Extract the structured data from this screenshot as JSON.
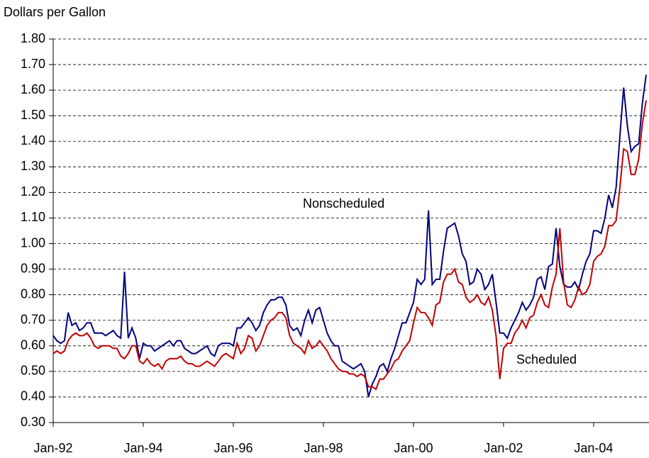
{
  "chart_data": {
    "type": "line",
    "y_label": "Dollars per Gallon",
    "categories": [
      "Jan-92",
      null,
      null,
      null,
      null,
      null,
      null,
      null,
      null,
      null,
      null,
      null,
      null,
      null,
      null,
      null,
      null,
      null,
      null,
      null,
      null,
      null,
      null,
      null,
      "Jan-94",
      null,
      null,
      null,
      null,
      null,
      null,
      null,
      null,
      null,
      null,
      null,
      null,
      null,
      null,
      null,
      null,
      null,
      null,
      null,
      null,
      null,
      null,
      null,
      "Jan-96",
      null,
      null,
      null,
      null,
      null,
      null,
      null,
      null,
      null,
      null,
      null,
      null,
      null,
      null,
      null,
      null,
      null,
      null,
      null,
      null,
      null,
      null,
      null,
      "Jan-98",
      null,
      null,
      null,
      null,
      null,
      null,
      null,
      null,
      null,
      null,
      null,
      null,
      null,
      null,
      null,
      null,
      null,
      null,
      null,
      null,
      null,
      null,
      null,
      "Jan-00",
      null,
      null,
      null,
      null,
      null,
      null,
      null,
      null,
      null,
      null,
      null,
      null,
      null,
      null,
      null,
      null,
      null,
      null,
      null,
      null,
      null,
      null,
      null,
      "Jan-02",
      null,
      null,
      null,
      null,
      null,
      null,
      null,
      null,
      null,
      null,
      null,
      null,
      null,
      null,
      null,
      null,
      null,
      null,
      null,
      null,
      null,
      null,
      null,
      "Jan-04",
      null,
      null,
      null,
      null,
      null,
      null,
      null,
      null,
      null,
      null,
      null,
      null,
      null,
      null
    ],
    "series": [
      {
        "name": "Nonscheduled",
        "color": "#000080",
        "values": [
          0.64,
          0.62,
          0.61,
          0.62,
          0.73,
          0.68,
          0.69,
          0.66,
          0.67,
          0.69,
          0.69,
          0.65,
          0.65,
          0.65,
          0.64,
          0.65,
          0.66,
          0.64,
          0.63,
          0.89,
          0.63,
          0.67,
          0.63,
          0.55,
          0.61,
          0.6,
          0.6,
          0.58,
          0.59,
          0.6,
          0.61,
          0.62,
          0.6,
          0.62,
          0.62,
          0.59,
          0.58,
          0.57,
          0.57,
          0.58,
          0.59,
          0.6,
          0.57,
          0.56,
          0.6,
          0.61,
          0.61,
          0.61,
          0.6,
          0.67,
          0.67,
          0.69,
          0.71,
          0.69,
          0.66,
          0.68,
          0.73,
          0.76,
          0.78,
          0.78,
          0.79,
          0.79,
          0.76,
          0.68,
          0.66,
          0.67,
          0.64,
          0.7,
          0.74,
          0.69,
          0.74,
          0.75,
          0.7,
          0.65,
          0.62,
          0.6,
          0.6,
          0.54,
          0.53,
          0.52,
          0.51,
          0.52,
          0.53,
          0.5,
          0.4,
          0.45,
          0.48,
          0.52,
          0.53,
          0.5,
          0.55,
          0.59,
          0.64,
          0.69,
          0.69,
          0.73,
          0.77,
          0.86,
          0.84,
          0.86,
          1.13,
          0.84,
          0.86,
          0.86,
          0.97,
          1.06,
          1.07,
          1.08,
          1.03,
          0.96,
          0.93,
          0.84,
          0.85,
          0.9,
          0.88,
          0.82,
          0.84,
          0.88,
          0.77,
          0.65,
          0.65,
          0.63,
          0.67,
          0.7,
          0.73,
          0.77,
          0.74,
          0.76,
          0.79,
          0.86,
          0.87,
          0.82,
          0.91,
          0.92,
          1.06,
          0.91,
          0.84,
          0.83,
          0.83,
          0.85,
          0.82,
          0.88,
          0.93,
          0.96,
          1.05,
          1.05,
          1.04,
          1.1,
          1.19,
          1.14,
          1.22,
          1.42,
          1.61,
          1.46,
          1.36,
          1.38,
          1.39,
          1.55,
          1.66
        ]
      },
      {
        "name": "Scheduled",
        "color": "#c00000",
        "values": [
          0.57,
          0.58,
          0.57,
          0.58,
          0.62,
          0.64,
          0.65,
          0.64,
          0.64,
          0.65,
          0.63,
          0.6,
          0.59,
          0.6,
          0.6,
          0.6,
          0.59,
          0.59,
          0.56,
          0.55,
          0.57,
          0.6,
          0.6,
          0.54,
          0.53,
          0.55,
          0.53,
          0.52,
          0.53,
          0.51,
          0.54,
          0.55,
          0.55,
          0.55,
          0.56,
          0.54,
          0.53,
          0.53,
          0.52,
          0.52,
          0.53,
          0.54,
          0.53,
          0.52,
          0.54,
          0.56,
          0.57,
          0.56,
          0.55,
          0.61,
          0.57,
          0.59,
          0.64,
          0.63,
          0.58,
          0.6,
          0.64,
          0.68,
          0.7,
          0.71,
          0.73,
          0.73,
          0.71,
          0.64,
          0.61,
          0.6,
          0.59,
          0.57,
          0.62,
          0.59,
          0.6,
          0.62,
          0.6,
          0.58,
          0.55,
          0.53,
          0.51,
          0.5,
          0.5,
          0.49,
          0.49,
          0.48,
          0.49,
          0.48,
          0.44,
          0.44,
          0.43,
          0.47,
          0.47,
          0.49,
          0.51,
          0.54,
          0.55,
          0.58,
          0.6,
          0.62,
          0.69,
          0.75,
          0.73,
          0.73,
          0.71,
          0.68,
          0.76,
          0.77,
          0.85,
          0.88,
          0.88,
          0.9,
          0.85,
          0.84,
          0.79,
          0.77,
          0.78,
          0.8,
          0.77,
          0.76,
          0.79,
          0.74,
          0.64,
          0.47,
          0.59,
          0.61,
          0.61,
          0.65,
          0.67,
          0.7,
          0.67,
          0.71,
          0.72,
          0.77,
          0.8,
          0.76,
          0.75,
          0.83,
          0.88,
          1.06,
          0.85,
          0.76,
          0.75,
          0.78,
          0.83,
          0.8,
          0.81,
          0.84,
          0.93,
          0.95,
          0.96,
          0.99,
          1.07,
          1.07,
          1.09,
          1.22,
          1.37,
          1.36,
          1.27,
          1.27,
          1.33,
          1.47,
          1.56
        ]
      }
    ],
    "ylim": [
      0.3,
      1.8
    ],
    "yticks": [
      {
        "value": 0.3,
        "label": "0.30"
      },
      {
        "value": 0.4,
        "label": "0.40"
      },
      {
        "value": 0.5,
        "label": "0.50"
      },
      {
        "value": 0.6,
        "label": "0.60"
      },
      {
        "value": 0.7,
        "label": "0.70"
      },
      {
        "value": 0.8,
        "label": "0.80"
      },
      {
        "value": 0.9,
        "label": "0.90"
      },
      {
        "value": 1.0,
        "label": "1.00"
      },
      {
        "value": 1.1,
        "label": "1.10"
      },
      {
        "value": 1.2,
        "label": "1.20"
      },
      {
        "value": 1.3,
        "label": "1.30"
      },
      {
        "value": 1.4,
        "label": "1.40"
      },
      {
        "value": 1.5,
        "label": "1.50"
      },
      {
        "value": 1.6,
        "label": "1.60"
      },
      {
        "value": 1.7,
        "label": "1.70"
      },
      {
        "value": 1.8,
        "label": "1.80"
      }
    ],
    "grid": true
  }
}
